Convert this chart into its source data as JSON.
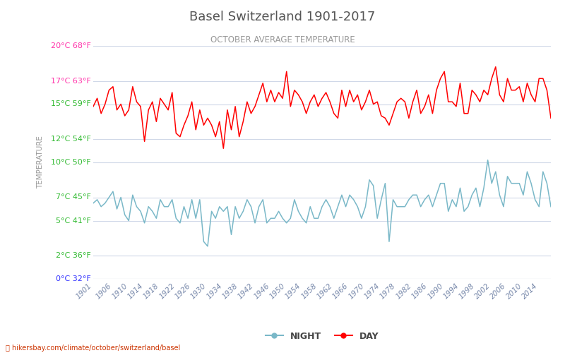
{
  "title": "Basel Switzerland 1901-2017",
  "subtitle": "OCTOBER AVERAGE TEMPERATURE",
  "ylabel": "TEMPERATURE",
  "watermark": "hikersbay.com/climate/october/switzerland/basel",
  "years": [
    1901,
    1902,
    1903,
    1904,
    1905,
    1906,
    1907,
    1908,
    1909,
    1910,
    1911,
    1912,
    1913,
    1914,
    1915,
    1916,
    1917,
    1918,
    1919,
    1920,
    1921,
    1922,
    1923,
    1924,
    1925,
    1926,
    1927,
    1928,
    1929,
    1930,
    1931,
    1932,
    1933,
    1934,
    1935,
    1936,
    1937,
    1938,
    1939,
    1940,
    1941,
    1942,
    1943,
    1944,
    1945,
    1946,
    1947,
    1948,
    1949,
    1950,
    1951,
    1952,
    1953,
    1954,
    1955,
    1956,
    1957,
    1958,
    1959,
    1960,
    1961,
    1962,
    1963,
    1964,
    1965,
    1966,
    1967,
    1968,
    1969,
    1970,
    1971,
    1972,
    1973,
    1974,
    1975,
    1976,
    1977,
    1978,
    1979,
    1980,
    1981,
    1982,
    1983,
    1984,
    1985,
    1986,
    1987,
    1988,
    1989,
    1990,
    1991,
    1992,
    1993,
    1994,
    1995,
    1996,
    1997,
    1998,
    1999,
    2000,
    2001,
    2002,
    2003,
    2004,
    2005,
    2006,
    2007,
    2008,
    2009,
    2010,
    2011,
    2012,
    2013,
    2014,
    2015,
    2016,
    2017
  ],
  "day_temps": [
    14.8,
    15.5,
    14.2,
    15.0,
    16.2,
    16.5,
    14.5,
    15.0,
    14.0,
    14.5,
    16.5,
    15.2,
    14.8,
    11.8,
    14.5,
    15.2,
    13.5,
    15.5,
    15.0,
    14.5,
    16.0,
    12.5,
    12.2,
    13.2,
    14.0,
    15.2,
    12.8,
    14.5,
    13.2,
    13.8,
    13.2,
    12.2,
    13.5,
    11.2,
    14.5,
    12.8,
    14.8,
    12.2,
    13.5,
    15.2,
    14.2,
    14.8,
    15.8,
    16.8,
    15.2,
    16.2,
    15.2,
    16.0,
    15.5,
    17.8,
    14.8,
    16.2,
    15.8,
    15.2,
    14.2,
    15.2,
    15.8,
    14.8,
    15.5,
    16.0,
    15.2,
    14.2,
    13.8,
    16.2,
    14.8,
    16.2,
    15.2,
    15.8,
    14.5,
    15.2,
    16.2,
    15.0,
    15.2,
    14.0,
    13.8,
    13.2,
    14.2,
    15.2,
    15.5,
    15.2,
    13.8,
    15.2,
    16.2,
    14.2,
    14.8,
    15.8,
    14.2,
    16.2,
    17.2,
    17.8,
    15.2,
    15.2,
    14.8,
    16.8,
    14.2,
    14.2,
    16.2,
    15.8,
    15.2,
    16.2,
    15.8,
    17.2,
    18.2,
    15.8,
    15.2,
    17.2,
    16.2,
    16.2,
    16.5,
    15.2,
    16.8,
    15.8,
    15.2,
    17.2,
    17.2,
    16.2,
    13.8
  ],
  "night_temps": [
    6.5,
    6.8,
    6.2,
    6.5,
    7.0,
    7.5,
    6.0,
    7.0,
    5.5,
    5.0,
    7.2,
    6.2,
    5.8,
    4.8,
    6.2,
    5.8,
    5.2,
    6.8,
    6.2,
    6.2,
    6.8,
    5.2,
    4.8,
    6.2,
    5.2,
    6.8,
    5.2,
    6.8,
    3.2,
    2.8,
    5.8,
    5.2,
    6.2,
    5.8,
    6.2,
    3.8,
    6.2,
    5.2,
    5.8,
    6.8,
    6.2,
    4.8,
    6.2,
    6.8,
    4.8,
    5.2,
    5.2,
    5.8,
    5.2,
    4.8,
    5.2,
    6.8,
    5.8,
    5.2,
    4.8,
    6.2,
    5.2,
    5.2,
    6.2,
    6.8,
    6.2,
    5.2,
    6.2,
    7.2,
    6.2,
    7.2,
    6.8,
    6.2,
    5.2,
    6.2,
    8.5,
    8.0,
    5.2,
    6.8,
    8.2,
    3.2,
    6.8,
    6.2,
    6.2,
    6.2,
    6.8,
    7.2,
    7.2,
    6.2,
    6.8,
    7.2,
    6.2,
    7.2,
    8.2,
    8.2,
    5.8,
    6.8,
    6.2,
    7.8,
    5.8,
    6.2,
    7.2,
    7.8,
    6.2,
    7.8,
    10.2,
    8.2,
    9.2,
    7.2,
    6.2,
    8.8,
    8.2,
    8.2,
    8.2,
    7.2,
    9.2,
    8.2,
    6.8,
    6.2,
    9.2,
    8.2,
    6.2
  ],
  "yticks_celsius": [
    0,
    2,
    5,
    7,
    10,
    12,
    15,
    17,
    20
  ],
  "yticks_fahrenheit": [
    32,
    36,
    41,
    45,
    50,
    54,
    59,
    63,
    68
  ],
  "ytick_colors": [
    "#3333ff",
    "#33bb33",
    "#33bb33",
    "#33bb33",
    "#33bb33",
    "#33bb33",
    "#33bb33",
    "#ff33aa",
    "#ff33aa"
  ],
  "xtick_years": [
    1901,
    1906,
    1910,
    1914,
    1918,
    1922,
    1926,
    1930,
    1934,
    1938,
    1942,
    1946,
    1950,
    1954,
    1958,
    1962,
    1966,
    1970,
    1974,
    1978,
    1982,
    1986,
    1990,
    1994,
    1998,
    2002,
    2006,
    2010,
    2014
  ],
  "day_color": "#ff0000",
  "night_color": "#7ab8c8",
  "grid_color": "#d0d8e8",
  "title_color": "#555555",
  "subtitle_color": "#999999",
  "bg_color": "#ffffff",
  "ylim": [
    0,
    20
  ],
  "legend_night": "NIGHT",
  "legend_day": "DAY",
  "watermark_color": "#cc3300",
  "xtick_color": "#7788aa",
  "watermark_icon": "🌍"
}
